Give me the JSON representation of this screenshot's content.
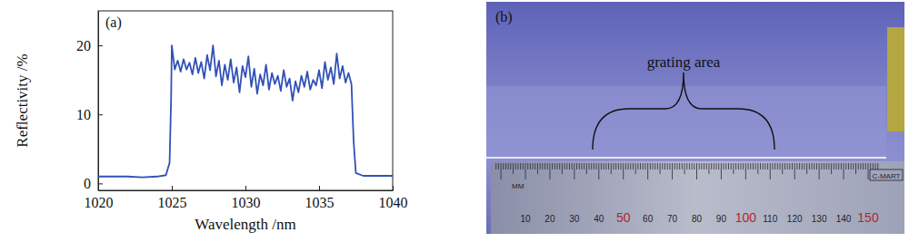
{
  "chart_data": {
    "type": "line",
    "title": "(a)",
    "x_label": "Wavelength /nm",
    "y_label": "Reflectivity /%",
    "color": "#3151b7",
    "xlim": [
      1020,
      1040
    ],
    "ylim": [
      -1,
      25
    ],
    "xticks": [
      1020,
      1025,
      1030,
      1035,
      1040
    ],
    "yticks": [
      0,
      10,
      20
    ],
    "x": [
      1020,
      1021,
      1022,
      1023,
      1024,
      1024.6,
      1024.85,
      1024.95,
      1025.0,
      1025.2,
      1025.4,
      1025.6,
      1025.8,
      1026.0,
      1026.2,
      1026.4,
      1026.6,
      1026.8,
      1027.0,
      1027.2,
      1027.4,
      1027.6,
      1027.8,
      1028.0,
      1028.2,
      1028.4,
      1028.6,
      1028.8,
      1029.0,
      1029.2,
      1029.4,
      1029.6,
      1029.8,
      1030.0,
      1030.2,
      1030.4,
      1030.6,
      1030.8,
      1031.0,
      1031.2,
      1031.4,
      1031.6,
      1031.8,
      1032.0,
      1032.2,
      1032.4,
      1032.6,
      1032.8,
      1033.0,
      1033.2,
      1033.4,
      1033.6,
      1033.8,
      1034.0,
      1034.2,
      1034.4,
      1034.6,
      1034.8,
      1035.0,
      1035.2,
      1035.4,
      1035.6,
      1035.8,
      1036.0,
      1036.2,
      1036.4,
      1036.6,
      1036.8,
      1037.0,
      1037.2,
      1037.35,
      1037.5,
      1038,
      1039,
      1040
    ],
    "values": [
      1.0,
      1.0,
      1.0,
      0.9,
      1.0,
      1.2,
      3.0,
      12.0,
      20.0,
      16.5,
      17.8,
      16.2,
      18.0,
      16.5,
      17.5,
      15.8,
      18.2,
      16.0,
      17.6,
      15.2,
      18.6,
      16.4,
      20.0,
      15.5,
      17.8,
      14.2,
      17.2,
      15.0,
      18.0,
      14.6,
      16.8,
      13.2,
      17.0,
      15.4,
      18.4,
      14.0,
      16.6,
      13.0,
      15.8,
      14.2,
      17.2,
      13.6,
      16.0,
      14.4,
      15.6,
      13.4,
      16.4,
      14.0,
      15.2,
      12.0,
      14.8,
      13.2,
      15.6,
      14.0,
      16.2,
      13.6,
      15.0,
      14.2,
      16.4,
      13.8,
      17.6,
      15.0,
      16.8,
      14.4,
      18.8,
      15.2,
      17.0,
      14.6,
      16.0,
      14.4,
      6.0,
      1.5,
      1.1,
      1.1,
      1.1
    ]
  },
  "photo": {
    "label": "(b)",
    "annotation": "grating area",
    "ruler": {
      "unit": "MM",
      "marks": [
        10,
        20,
        30,
        40,
        50,
        60,
        70,
        80,
        90,
        100,
        110,
        120,
        130,
        140,
        150
      ],
      "brand": "C-MART"
    }
  }
}
